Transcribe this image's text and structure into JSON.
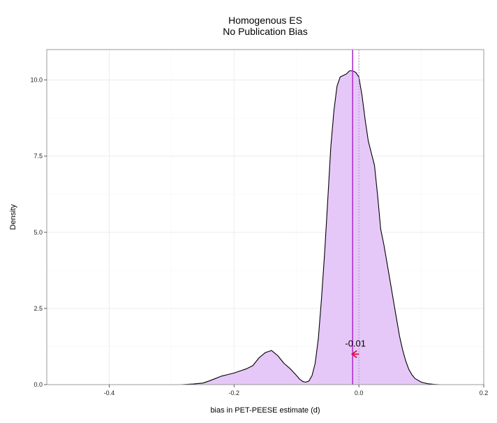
{
  "chart_data": {
    "type": "area",
    "title": "Homogenous ES",
    "subtitle": "No Publication Bias",
    "xlabel": "bias in PET-PEESE estimate (d)",
    "ylabel": "Density",
    "xlim": [
      -0.5,
      0.2
    ],
    "ylim": [
      0,
      11
    ],
    "x_ticks": [
      -0.4,
      -0.2,
      0.0,
      0.2
    ],
    "x_tick_labels": [
      "-0.4",
      "-0.2",
      "0.0",
      "0.2"
    ],
    "y_ticks": [
      0,
      2.5,
      5,
      7.5,
      10
    ],
    "y_tick_labels": [
      "0.0",
      "2.5",
      "5.0",
      "7.5",
      "10.0"
    ],
    "grid": true,
    "fill_color": "#e6c8f8",
    "line_color": "#000000",
    "mean_line": {
      "x": -0.01,
      "color": "#b030d0"
    },
    "reference_line": {
      "x": 0.0,
      "color": "#b48ccc",
      "style": "dotted"
    },
    "annotation": {
      "text": "-0.01",
      "x": -0.01,
      "y": 1.0,
      "arrow_color": "#e0103c"
    },
    "density": {
      "x": [
        -0.285,
        -0.265,
        -0.25,
        -0.24,
        -0.23,
        -0.22,
        -0.21,
        -0.2,
        -0.19,
        -0.18,
        -0.17,
        -0.16,
        -0.15,
        -0.14,
        -0.13,
        -0.12,
        -0.11,
        -0.1,
        -0.095,
        -0.09,
        -0.085,
        -0.08,
        -0.075,
        -0.07,
        -0.065,
        -0.06,
        -0.055,
        -0.05,
        -0.045,
        -0.04,
        -0.035,
        -0.03,
        -0.025,
        -0.02,
        -0.015,
        -0.01,
        -0.005,
        0.0,
        0.005,
        0.01,
        0.015,
        0.02,
        0.025,
        0.03,
        0.035,
        0.04,
        0.045,
        0.05,
        0.055,
        0.06,
        0.065,
        0.07,
        0.075,
        0.08,
        0.085,
        0.09,
        0.1,
        0.11,
        0.12,
        0.13
      ],
      "y": [
        0.0,
        0.02,
        0.05,
        0.12,
        0.2,
        0.28,
        0.33,
        0.38,
        0.45,
        0.52,
        0.62,
        0.88,
        1.05,
        1.12,
        0.95,
        0.7,
        0.52,
        0.3,
        0.18,
        0.1,
        0.08,
        0.12,
        0.3,
        0.7,
        1.5,
        2.8,
        4.3,
        6.0,
        7.8,
        9.0,
        9.8,
        10.1,
        10.15,
        10.2,
        10.3,
        10.3,
        10.25,
        10.1,
        9.5,
        8.7,
        8.0,
        7.6,
        7.2,
        6.2,
        5.1,
        4.6,
        4.0,
        3.4,
        2.8,
        2.2,
        1.6,
        1.15,
        0.78,
        0.5,
        0.32,
        0.2,
        0.08,
        0.03,
        0.01,
        0.0
      ]
    }
  }
}
